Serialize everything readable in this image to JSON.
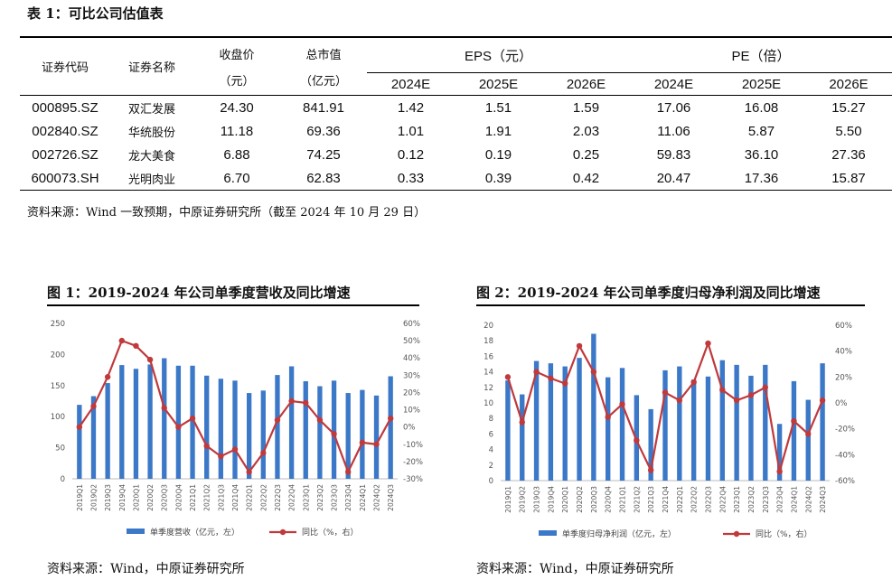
{
  "table": {
    "title": "表 1：可比公司估值表",
    "headers": {
      "code": "证券代码",
      "name": "证券名称",
      "price": "收盘价",
      "price_unit": "（元）",
      "mcap": "总市值",
      "mcap_unit": "（亿元）",
      "eps": "EPS（元）",
      "pe": "PE（倍）",
      "years": [
        "2024E",
        "2025E",
        "2026E"
      ]
    },
    "rows": [
      {
        "code": "000895.SZ",
        "name": "双汇发展",
        "price": "24.30",
        "mcap": "841.91",
        "eps": [
          "1.42",
          "1.51",
          "1.59"
        ],
        "pe": [
          "17.06",
          "16.08",
          "15.27"
        ]
      },
      {
        "code": "002840.SZ",
        "name": "华统股份",
        "price": "11.18",
        "mcap": "69.36",
        "eps": [
          "1.01",
          "1.91",
          "2.03"
        ],
        "pe": [
          "11.06",
          "5.87",
          "5.50"
        ]
      },
      {
        "code": "002726.SZ",
        "name": "龙大美食",
        "price": "6.88",
        "mcap": "74.25",
        "eps": [
          "0.12",
          "0.19",
          "0.25"
        ],
        "pe": [
          "59.83",
          "36.10",
          "27.36"
        ]
      },
      {
        "code": "600073.SH",
        "name": "光明肉业",
        "price": "6.70",
        "mcap": "62.83",
        "eps": [
          "0.33",
          "0.39",
          "0.42"
        ],
        "pe": [
          "20.47",
          "17.36",
          "15.87"
        ]
      }
    ],
    "note": "资料来源：Wind 一致预期，中原证券研究所（截至 2024 年 10 月 29 日）"
  },
  "figures": {
    "fig1": {
      "title": "图 1：2019-2024 年公司单季度营收及同比增速",
      "source": "资料来源：Wind，中原证券研究所"
    },
    "fig2": {
      "title": "图 2：2019-2024 年公司单季度归母净利润及同比增速",
      "source": "资料来源：Wind，中原证券研究所"
    }
  },
  "chart_data": [
    {
      "type": "bar",
      "title": "图 1：2019-2024 年公司单季度营收及同比增速",
      "categories": [
        "2019Q1",
        "2019Q2",
        "2019Q3",
        "2019Q4",
        "2020Q1",
        "2020Q2",
        "2020Q3",
        "2020Q4",
        "2021Q1",
        "2021Q2",
        "2021Q3",
        "2021Q4",
        "2022Q1",
        "2022Q2",
        "2022Q3",
        "2022Q4",
        "2023Q1",
        "2023Q2",
        "2023Q3",
        "2023Q4",
        "2024Q1",
        "2024Q2",
        "2024Q3"
      ],
      "series": [
        {
          "name": "单季度营收（亿元，左）",
          "kind": "bar",
          "axis": "left",
          "color": "#3C78C8",
          "values": [
            119,
            133,
            154,
            183,
            177,
            184,
            194,
            182,
            182,
            166,
            161,
            158,
            138,
            142,
            167,
            181,
            157,
            149,
            158,
            138,
            143,
            134,
            165
          ]
        },
        {
          "name": "同比（%，右）",
          "kind": "line",
          "axis": "right",
          "color": "#C0393B",
          "values": [
            0,
            12,
            29,
            50,
            47,
            39,
            11,
            0,
            5,
            -11,
            -17,
            -13,
            -26,
            -15,
            4,
            15,
            14,
            4,
            -4,
            -26,
            -9,
            -10,
            5
          ]
        }
      ],
      "yleft": {
        "min": 0,
        "max": 250,
        "ticks": [
          "0",
          "50",
          "100",
          "150",
          "200",
          "250"
        ]
      },
      "yright": {
        "min": -30,
        "max": 60,
        "ticks": [
          "-30%",
          "-20%",
          "-10%",
          "0%",
          "10%",
          "20%",
          "30%",
          "40%",
          "50%",
          "60%"
        ]
      },
      "legend": "bottom"
    },
    {
      "type": "bar",
      "title": "图 2：2019-2024 年公司单季度归母净利润及同比增速",
      "categories": [
        "2019Q1",
        "2019Q2",
        "2019Q3",
        "2019Q4",
        "2020Q1",
        "2020Q2",
        "2020Q3",
        "2020Q4",
        "2021Q1",
        "2021Q2",
        "2021Q3",
        "2021Q4",
        "2022Q1",
        "2022Q2",
        "2022Q3",
        "2022Q4",
        "2023Q1",
        "2023Q2",
        "2023Q3",
        "2023Q4",
        "2024Q1",
        "2024Q2",
        "2024Q3"
      ],
      "series": [
        {
          "name": "单季度归母净利润（亿元，左）",
          "kind": "bar",
          "axis": "left",
          "color": "#3C78C8",
          "values": [
            12.9,
            11.1,
            15.4,
            15.1,
            14.7,
            15.8,
            18.9,
            13.3,
            14.5,
            11.0,
            9.2,
            14.2,
            14.7,
            13.0,
            13.4,
            15.5,
            14.9,
            13.5,
            14.9,
            7.3,
            12.8,
            10.4,
            15.1
          ]
        },
        {
          "name": "同比（%，右）",
          "kind": "line",
          "axis": "right",
          "color": "#C0393B",
          "values": [
            20,
            -15,
            24,
            19,
            15,
            44,
            24,
            -11,
            -1,
            -29,
            -52,
            8,
            2,
            16,
            46,
            10,
            2,
            6,
            12,
            -53,
            -14,
            -24,
            2
          ]
        }
      ],
      "yleft": {
        "min": 0,
        "max": 20,
        "ticks": [
          "0",
          "2",
          "4",
          "6",
          "8",
          "10",
          "12",
          "14",
          "16",
          "18",
          "20"
        ]
      },
      "yright": {
        "min": -60,
        "max": 60,
        "ticks": [
          "-60%",
          "-40%",
          "-20%",
          "0%",
          "20%",
          "40%",
          "60%"
        ]
      },
      "legend": "bottom"
    }
  ]
}
